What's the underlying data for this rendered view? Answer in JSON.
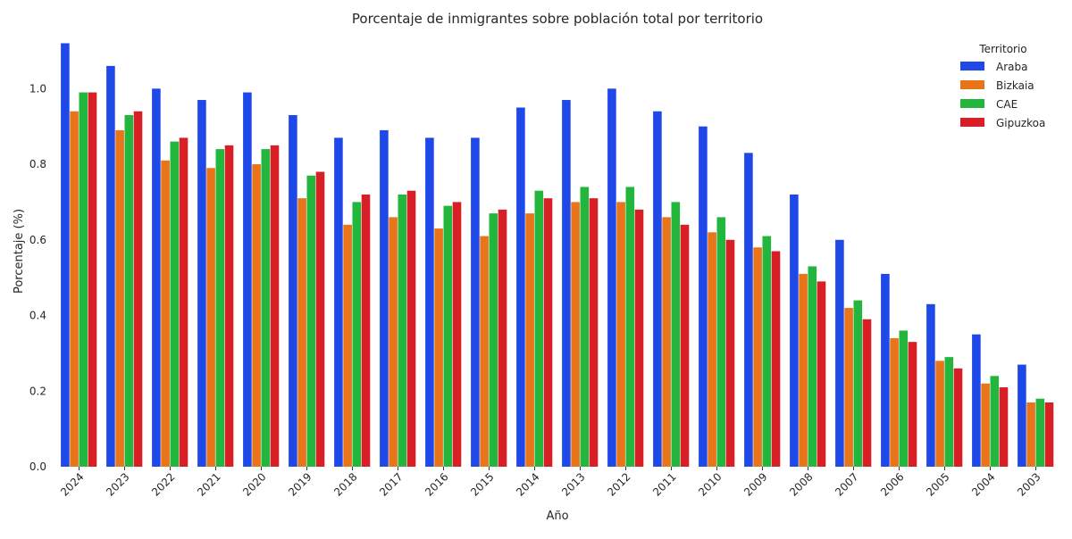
{
  "chart_data": {
    "type": "bar",
    "title": "Porcentaje de inmigrantes sobre población total por territorio",
    "xlabel": "Año",
    "ylabel": "Porcentaje (%)",
    "ylim": [
      0,
      1.14
    ],
    "yticks": [
      "0.0",
      "0.2",
      "0.4",
      "0.6",
      "0.8",
      "1.0"
    ],
    "grid": false,
    "legend": {
      "title": "Territorio",
      "placement": "top-right"
    },
    "categories": [
      "2024",
      "2023",
      "2022",
      "2021",
      "2020",
      "2019",
      "2018",
      "2017",
      "2016",
      "2015",
      "2014",
      "2013",
      "2012",
      "2011",
      "2010",
      "2009",
      "2008",
      "2007",
      "2006",
      "2005",
      "2004",
      "2003"
    ],
    "series": [
      {
        "name": "Araba",
        "color": "#1f48e8",
        "values": [
          1.12,
          1.06,
          1.0,
          0.97,
          0.99,
          0.93,
          0.87,
          0.89,
          0.87,
          0.87,
          0.95,
          0.97,
          1.0,
          0.94,
          0.9,
          0.83,
          0.72,
          0.6,
          0.51,
          0.43,
          0.35,
          0.27
        ]
      },
      {
        "name": "Bizkaia",
        "color": "#e8751a",
        "values": [
          0.94,
          0.89,
          0.81,
          0.79,
          0.8,
          0.71,
          0.64,
          0.66,
          0.63,
          0.61,
          0.67,
          0.7,
          0.7,
          0.66,
          0.62,
          0.58,
          0.51,
          0.42,
          0.34,
          0.28,
          0.22,
          0.17
        ]
      },
      {
        "name": "CAE",
        "color": "#22b63d",
        "values": [
          0.99,
          0.93,
          0.86,
          0.84,
          0.84,
          0.77,
          0.7,
          0.72,
          0.69,
          0.67,
          0.73,
          0.74,
          0.74,
          0.7,
          0.66,
          0.61,
          0.53,
          0.44,
          0.36,
          0.29,
          0.24,
          0.18
        ]
      },
      {
        "name": "Gipuzkoa",
        "color": "#d81f26",
        "values": [
          0.99,
          0.94,
          0.87,
          0.85,
          0.85,
          0.78,
          0.72,
          0.73,
          0.7,
          0.68,
          0.71,
          0.71,
          0.68,
          0.64,
          0.6,
          0.57,
          0.49,
          0.39,
          0.33,
          0.26,
          0.21,
          0.17
        ]
      }
    ]
  }
}
